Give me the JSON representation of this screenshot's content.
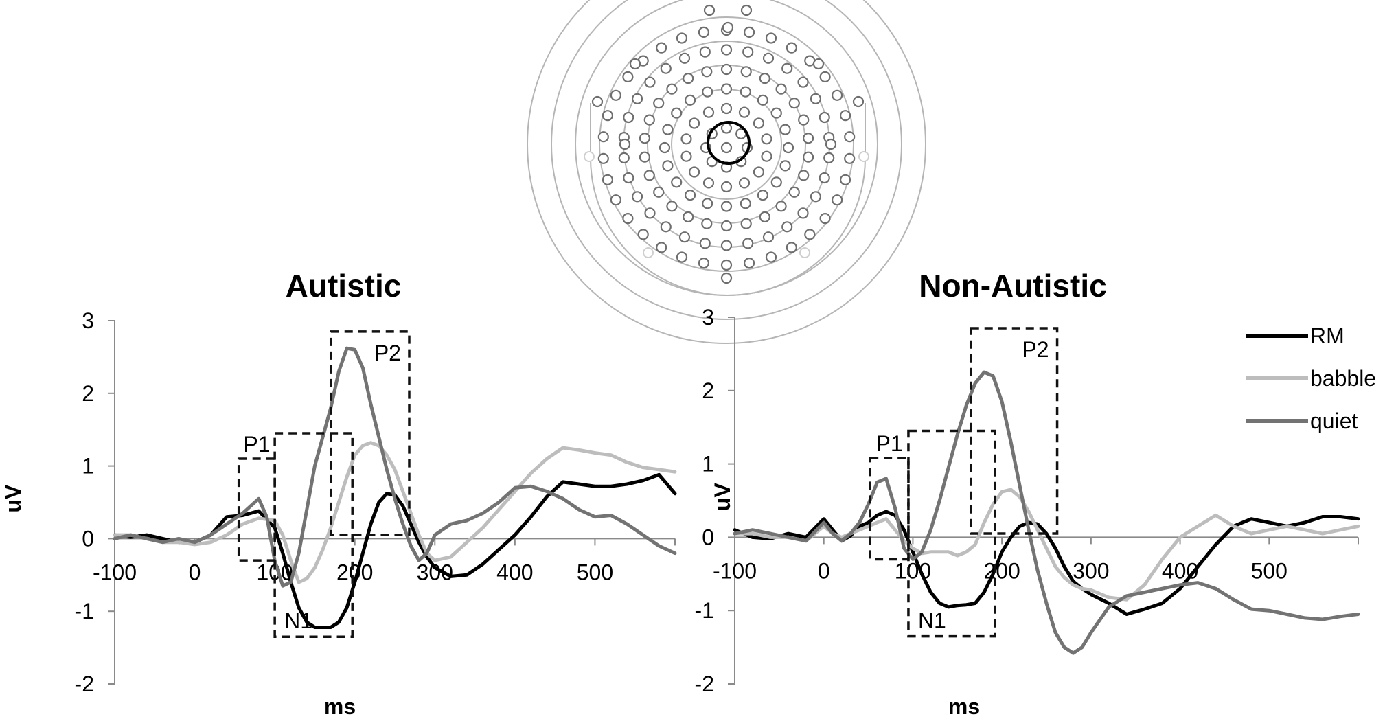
{
  "colors": {
    "RM": "#000000",
    "babble": "#bdbdbd",
    "quiet": "#737373",
    "axis": "#8a8a8a",
    "box": "#111111",
    "electrode": "#6e6e6e"
  },
  "legend": {
    "placement": "top-right",
    "entries": [
      "RM",
      "babble",
      "quiet"
    ]
  },
  "chart_data": [
    {
      "type": "line",
      "title": "Autistic",
      "xlabel": "ms",
      "ylabel": "uV",
      "xlim": [
        -100,
        600
      ],
      "ylim": [
        -2,
        3
      ],
      "xticks": [
        -100,
        0,
        100,
        200,
        300,
        400,
        500
      ],
      "yticks": [
        -2,
        -1,
        0,
        1,
        2,
        3
      ],
      "legend_entries": [],
      "boxes": [
        {
          "label": "P1",
          "x0": 55,
          "x1": 100,
          "y0": -0.3,
          "y1": 1.1
        },
        {
          "label": "N1",
          "x0": 100,
          "x1": 197,
          "y0": -1.35,
          "y1": 1.45
        },
        {
          "label": "P2",
          "x0": 170,
          "x1": 268,
          "y0": 0.05,
          "y1": 2.85
        }
      ],
      "series": [
        {
          "name": "RM",
          "x": [
            -100,
            -80,
            -60,
            -40,
            -20,
            0,
            20,
            40,
            60,
            80,
            100,
            110,
            120,
            130,
            140,
            150,
            160,
            170,
            180,
            190,
            200,
            210,
            220,
            230,
            240,
            250,
            260,
            270,
            280,
            290,
            300,
            320,
            340,
            360,
            380,
            400,
            420,
            440,
            460,
            480,
            500,
            520,
            540,
            560,
            580,
            600
          ],
          "y": [
            0.05,
            0.02,
            0.05,
            0.0,
            -0.05,
            -0.05,
            0.05,
            0.3,
            0.32,
            0.38,
            0.15,
            -0.2,
            -0.6,
            -0.95,
            -1.15,
            -1.22,
            -1.22,
            -1.22,
            -1.15,
            -0.95,
            -0.6,
            -0.2,
            0.2,
            0.5,
            0.62,
            0.6,
            0.45,
            0.2,
            -0.05,
            -0.25,
            -0.4,
            -0.52,
            -0.5,
            -0.35,
            -0.15,
            0.05,
            0.3,
            0.58,
            0.78,
            0.75,
            0.72,
            0.72,
            0.75,
            0.8,
            0.88,
            0.62
          ]
        },
        {
          "name": "babble",
          "x": [
            -100,
            -80,
            -60,
            -40,
            -20,
            0,
            20,
            40,
            60,
            80,
            100,
            110,
            120,
            130,
            140,
            150,
            160,
            170,
            180,
            190,
            200,
            210,
            220,
            230,
            240,
            250,
            260,
            270,
            280,
            290,
            300,
            320,
            340,
            360,
            380,
            400,
            420,
            440,
            460,
            480,
            500,
            520,
            540,
            560,
            580,
            600
          ],
          "y": [
            0.05,
            0.05,
            0.0,
            -0.05,
            -0.05,
            -0.08,
            -0.05,
            0.05,
            0.2,
            0.28,
            0.25,
            0.05,
            -0.3,
            -0.6,
            -0.55,
            -0.4,
            -0.15,
            0.15,
            0.5,
            0.85,
            1.15,
            1.28,
            1.32,
            1.28,
            1.15,
            0.95,
            0.65,
            0.35,
            0.05,
            -0.2,
            -0.3,
            -0.25,
            -0.05,
            0.15,
            0.4,
            0.65,
            0.9,
            1.1,
            1.25,
            1.22,
            1.18,
            1.15,
            1.05,
            0.98,
            0.95,
            0.92
          ]
        },
        {
          "name": "quiet",
          "x": [
            -100,
            -80,
            -60,
            -40,
            -20,
            0,
            20,
            40,
            60,
            80,
            90,
            100,
            110,
            120,
            130,
            140,
            150,
            160,
            170,
            180,
            190,
            200,
            210,
            220,
            230,
            240,
            250,
            260,
            270,
            280,
            290,
            300,
            320,
            340,
            360,
            380,
            400,
            420,
            440,
            460,
            480,
            500,
            520,
            540,
            560,
            580,
            600
          ],
          "y": [
            0.0,
            0.05,
            0.0,
            -0.05,
            0.0,
            -0.05,
            0.05,
            0.2,
            0.35,
            0.55,
            0.3,
            -0.3,
            -0.65,
            -0.6,
            -0.2,
            0.4,
            1.0,
            1.4,
            1.8,
            2.3,
            2.62,
            2.6,
            2.35,
            1.85,
            1.4,
            0.95,
            0.55,
            0.2,
            -0.1,
            -0.3,
            -0.2,
            0.05,
            0.2,
            0.25,
            0.35,
            0.5,
            0.7,
            0.72,
            0.65,
            0.55,
            0.4,
            0.3,
            0.32,
            0.2,
            0.05,
            -0.1,
            -0.2
          ]
        }
      ]
    },
    {
      "type": "line",
      "title": "Non-Autistic",
      "xlabel": "ms",
      "ylabel": "uV",
      "xlim": [
        -100,
        600
      ],
      "ylim": [
        -2,
        3
      ],
      "xticks": [
        -100,
        0,
        100,
        200,
        300,
        400,
        500
      ],
      "yticks": [
        -2,
        -1,
        0,
        1,
        2,
        3
      ],
      "legend_entries": [
        "RM",
        "babble",
        "quiet"
      ],
      "boxes": [
        {
          "label": "P1",
          "x0": 52,
          "x1": 95,
          "y0": -0.3,
          "y1": 1.08
        },
        {
          "label": "N1",
          "x0": 95,
          "x1": 192,
          "y0": -1.35,
          "y1": 1.45
        },
        {
          "label": "P2",
          "x0": 165,
          "x1": 262,
          "y0": 0.05,
          "y1": 2.85
        }
      ],
      "series": [
        {
          "name": "RM",
          "x": [
            -100,
            -80,
            -60,
            -40,
            -20,
            0,
            10,
            20,
            30,
            40,
            50,
            60,
            70,
            80,
            90,
            100,
            110,
            120,
            130,
            140,
            150,
            160,
            170,
            180,
            190,
            200,
            210,
            220,
            230,
            240,
            250,
            260,
            270,
            280,
            290,
            300,
            320,
            340,
            360,
            380,
            400,
            420,
            440,
            460,
            480,
            500,
            520,
            540,
            560,
            580,
            600
          ],
          "y": [
            0.1,
            0.0,
            -0.02,
            0.05,
            0.0,
            0.25,
            0.1,
            -0.05,
            0.02,
            0.15,
            0.2,
            0.3,
            0.35,
            0.3,
            0.1,
            -0.2,
            -0.5,
            -0.75,
            -0.9,
            -0.95,
            -0.93,
            -0.92,
            -0.9,
            -0.75,
            -0.5,
            -0.2,
            0.0,
            0.15,
            0.2,
            0.18,
            0.05,
            -0.15,
            -0.4,
            -0.6,
            -0.7,
            -0.78,
            -0.9,
            -1.05,
            -0.98,
            -0.9,
            -0.7,
            -0.4,
            -0.1,
            0.15,
            0.25,
            0.2,
            0.15,
            0.2,
            0.28,
            0.28,
            0.25
          ]
        },
        {
          "name": "babble",
          "x": [
            -100,
            -80,
            -60,
            -40,
            -20,
            0,
            10,
            20,
            30,
            40,
            50,
            60,
            70,
            80,
            90,
            100,
            110,
            120,
            130,
            140,
            150,
            160,
            170,
            180,
            190,
            200,
            210,
            220,
            230,
            240,
            250,
            260,
            270,
            280,
            290,
            300,
            320,
            340,
            360,
            380,
            400,
            420,
            440,
            460,
            480,
            500,
            520,
            540,
            560,
            580,
            600
          ],
          "y": [
            0.05,
            0.05,
            0.0,
            0.0,
            -0.05,
            0.15,
            0.05,
            0.0,
            0.05,
            0.1,
            0.15,
            0.2,
            0.25,
            0.1,
            -0.05,
            -0.15,
            -0.22,
            -0.2,
            -0.2,
            -0.2,
            -0.25,
            -0.2,
            -0.1,
            0.2,
            0.45,
            0.62,
            0.65,
            0.55,
            0.35,
            0.1,
            -0.15,
            -0.4,
            -0.55,
            -0.65,
            -0.7,
            -0.72,
            -0.82,
            -0.85,
            -0.65,
            -0.3,
            0.0,
            0.15,
            0.3,
            0.15,
            0.05,
            0.1,
            0.15,
            0.1,
            0.05,
            0.1,
            0.15
          ]
        },
        {
          "name": "quiet",
          "x": [
            -100,
            -80,
            -60,
            -40,
            -20,
            0,
            10,
            20,
            30,
            40,
            50,
            60,
            70,
            80,
            90,
            100,
            110,
            120,
            130,
            140,
            150,
            160,
            170,
            180,
            190,
            200,
            210,
            220,
            230,
            240,
            250,
            260,
            270,
            280,
            290,
            300,
            320,
            340,
            360,
            380,
            400,
            420,
            440,
            460,
            480,
            500,
            520,
            540,
            560,
            580,
            600
          ],
          "y": [
            0.05,
            0.1,
            0.05,
            0.0,
            -0.05,
            0.2,
            0.05,
            -0.05,
            0.05,
            0.2,
            0.45,
            0.75,
            0.8,
            0.4,
            -0.15,
            -0.3,
            -0.2,
            0.1,
            0.5,
            0.95,
            1.4,
            1.8,
            2.1,
            2.25,
            2.2,
            1.85,
            1.3,
            0.7,
            0.1,
            -0.45,
            -0.9,
            -1.3,
            -1.5,
            -1.58,
            -1.5,
            -1.3,
            -0.95,
            -0.8,
            -0.75,
            -0.7,
            -0.65,
            -0.62,
            -0.7,
            -0.85,
            -0.98,
            -1.0,
            -1.05,
            -1.1,
            -1.12,
            -1.08,
            -1.05
          ]
        }
      ]
    }
  ]
}
